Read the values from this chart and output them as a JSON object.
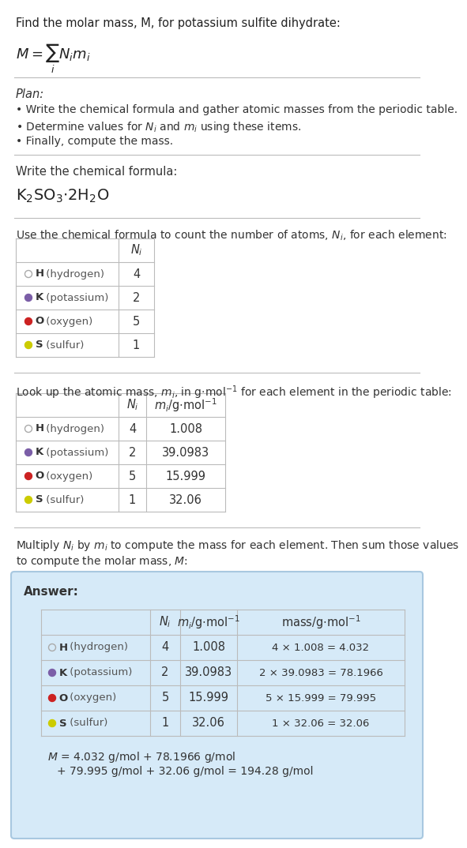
{
  "title_text": "Find the molar mass, M, for potassium sulfite dihydrate:",
  "plan_header": "Plan:",
  "plan_bullets": [
    "• Write the chemical formula and gather atomic masses from the periodic table.",
    "• Determine values for $N_i$ and $m_i$ using these items.",
    "• Finally, compute the mass."
  ],
  "chem_formula_label": "Write the chemical formula:",
  "table1_label": "Use the chemical formula to count the number of atoms, $N_i$, for each element:",
  "table2_label": "Look up the atomic mass, $m_i$, in g·mol$^{-1}$ for each element in the periodic table:",
  "table3_label": "Multiply $N_i$ by $m_i$ to compute the mass for each element. Then sum those values\nto compute the molar mass, $M$:",
  "answer_label": "Answer:",
  "elements": [
    "H (hydrogen)",
    "K (potassium)",
    "O (oxygen)",
    "S (sulfur)"
  ],
  "dot_colors": [
    "none",
    "#7B5EA7",
    "#CC2222",
    "#CCCC00"
  ],
  "Ni_values": [
    4,
    2,
    5,
    1
  ],
  "mi_values": [
    "1.008",
    "39.0983",
    "15.999",
    "32.06"
  ],
  "mass_calcs": [
    "4 × 1.008 = 4.032",
    "2 × 39.0983 = 78.1966",
    "5 × 15.999 = 79.995",
    "1 × 32.06 = 32.06"
  ],
  "answer_bg": "#D6EAF8",
  "answer_border": "#A8D4F0",
  "bg_color": "#FFFFFF"
}
